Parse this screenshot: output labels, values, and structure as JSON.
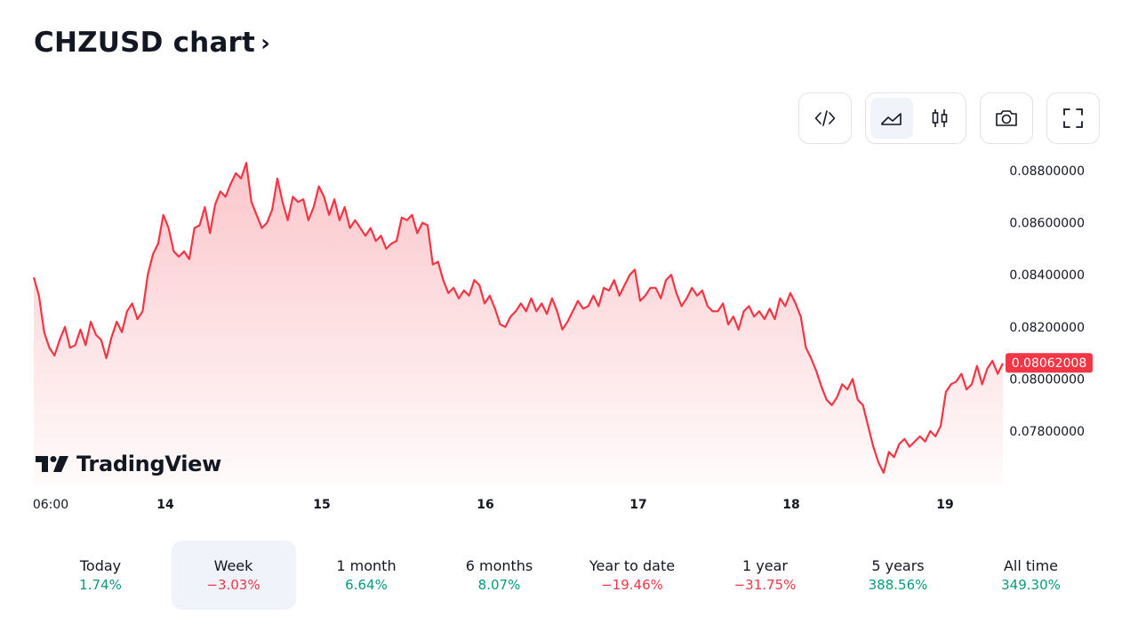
{
  "header": {
    "title": "CHZUSD chart",
    "chevron": "›"
  },
  "toolbar": {
    "embed_icon": "code-icon",
    "line_icon": "area-chart-icon",
    "candle_icon": "candlestick-icon",
    "snapshot_icon": "camera-icon",
    "fullscreen_icon": "fullscreen-icon",
    "active_style": "line"
  },
  "logo": {
    "text": "TradingView"
  },
  "colors": {
    "line": "#f23645",
    "positive": "#089981",
    "negative": "#f23645",
    "price_tag_bg": "#f23645"
  },
  "chart_data": {
    "type": "area",
    "symbol": "CHZUSD",
    "x_ticks": [
      "06:00",
      "14",
      "15",
      "16",
      "17",
      "18",
      "19"
    ],
    "y_ticks": [
      "0.08800000",
      "0.08600000",
      "0.08400000",
      "0.08200000",
      "0.08000000",
      "0.07800000"
    ],
    "ylim": [
      0.0761,
      0.0886
    ],
    "last_price": 0.08062008,
    "last_price_label": "0.08062008",
    "grid": false,
    "values": [
      0.0839,
      0.0832,
      0.0818,
      0.0812,
      0.0809,
      0.0815,
      0.082,
      0.0812,
      0.0813,
      0.0819,
      0.0813,
      0.0822,
      0.0817,
      0.0815,
      0.0808,
      0.0816,
      0.0822,
      0.0818,
      0.0826,
      0.0829,
      0.0823,
      0.0826,
      0.084,
      0.0848,
      0.0852,
      0.0863,
      0.0858,
      0.0849,
      0.0847,
      0.0849,
      0.0846,
      0.0858,
      0.0859,
      0.0866,
      0.0856,
      0.0867,
      0.0872,
      0.087,
      0.0875,
      0.0879,
      0.0877,
      0.0883,
      0.0868,
      0.0863,
      0.0858,
      0.086,
      0.0865,
      0.0877,
      0.0868,
      0.0861,
      0.087,
      0.0868,
      0.0869,
      0.0861,
      0.0866,
      0.0874,
      0.087,
      0.0863,
      0.0869,
      0.0861,
      0.0866,
      0.0858,
      0.0861,
      0.0858,
      0.0855,
      0.0858,
      0.0853,
      0.0855,
      0.085,
      0.0852,
      0.0853,
      0.0862,
      0.0861,
      0.0863,
      0.0856,
      0.086,
      0.0859,
      0.0844,
      0.0845,
      0.0838,
      0.0833,
      0.0835,
      0.0831,
      0.0834,
      0.0832,
      0.0838,
      0.0836,
      0.0829,
      0.0832,
      0.0827,
      0.0821,
      0.082,
      0.0824,
      0.0826,
      0.0829,
      0.0826,
      0.0831,
      0.0826,
      0.0829,
      0.0825,
      0.0831,
      0.0826,
      0.0819,
      0.0822,
      0.0826,
      0.083,
      0.0827,
      0.0828,
      0.0832,
      0.0828,
      0.0835,
      0.0834,
      0.0838,
      0.0832,
      0.0836,
      0.084,
      0.0842,
      0.083,
      0.0832,
      0.0835,
      0.0835,
      0.0831,
      0.0838,
      0.084,
      0.0833,
      0.0828,
      0.0831,
      0.0835,
      0.0832,
      0.0834,
      0.0828,
      0.0826,
      0.0826,
      0.0829,
      0.0821,
      0.0824,
      0.0819,
      0.0826,
      0.0828,
      0.0824,
      0.0826,
      0.0823,
      0.0827,
      0.0823,
      0.0831,
      0.0828,
      0.0833,
      0.0829,
      0.0824,
      0.0812,
      0.0808,
      0.0803,
      0.0797,
      0.0792,
      0.079,
      0.0793,
      0.0798,
      0.0796,
      0.08,
      0.0792,
      0.079,
      0.0782,
      0.0774,
      0.0768,
      0.0764,
      0.0772,
      0.077,
      0.0775,
      0.0777,
      0.0774,
      0.0776,
      0.0778,
      0.0776,
      0.078,
      0.0778,
      0.0782,
      0.0795,
      0.0798,
      0.0799,
      0.0802,
      0.0796,
      0.0798,
      0.0805,
      0.0798,
      0.0804,
      0.0807,
      0.0802,
      0.0806
    ]
  },
  "periods": [
    {
      "label": "Today",
      "change": "1.74%",
      "positive": true
    },
    {
      "label": "Week",
      "change": "−3.03%",
      "positive": false,
      "active": true
    },
    {
      "label": "1 month",
      "change": "6.64%",
      "positive": true
    },
    {
      "label": "6 months",
      "change": "8.07%",
      "positive": true
    },
    {
      "label": "Year to date",
      "change": "−19.46%",
      "positive": false
    },
    {
      "label": "1 year",
      "change": "−31.75%",
      "positive": false
    },
    {
      "label": "5 years",
      "change": "388.56%",
      "positive": true
    },
    {
      "label": "All time",
      "change": "349.30%",
      "positive": true
    }
  ]
}
